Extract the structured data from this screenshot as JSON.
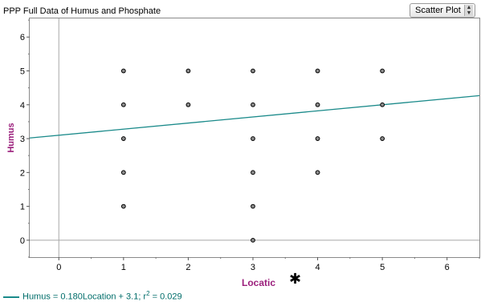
{
  "title": "PPP Full Data of Humus and Phosphate",
  "plot_type": {
    "selected": "Scatter Plot"
  },
  "footer": {
    "prefix": "Humus = 0.180Location + 3.1; r",
    "sup": "2",
    "suffix": " = 0.029"
  },
  "colors": {
    "axis_label": "#9b1f7c",
    "regression": "#1a8a8a",
    "point_fill": "#8c8c8c"
  },
  "icons": {
    "select_arrows": "up-down-arrows-icon",
    "cursor": "asterisk-cursor-icon"
  },
  "chart_data": {
    "type": "scatter",
    "title": "PPP Full Data of Humus and Phosphate",
    "xlabel": "Locatic",
    "ylabel": "Humus",
    "xlim": [
      -0.45,
      6.5
    ],
    "ylim": [
      -0.5,
      6.55
    ],
    "x_ticks": [
      0,
      1,
      2,
      3,
      4,
      5,
      6
    ],
    "x_tick_labels": [
      "0",
      "1",
      "2",
      "3",
      "4",
      "5",
      "6"
    ],
    "y_ticks": [
      0,
      1,
      2,
      3,
      4,
      5,
      6
    ],
    "y_tick_labels": [
      "0",
      "1",
      "2",
      "3",
      "4",
      "5",
      "6"
    ],
    "points": [
      {
        "x": 1,
        "y": 5
      },
      {
        "x": 1,
        "y": 4
      },
      {
        "x": 1,
        "y": 3
      },
      {
        "x": 1,
        "y": 2
      },
      {
        "x": 1,
        "y": 1
      },
      {
        "x": 2,
        "y": 5
      },
      {
        "x": 2,
        "y": 4
      },
      {
        "x": 3,
        "y": 5
      },
      {
        "x": 3,
        "y": 4
      },
      {
        "x": 3,
        "y": 3
      },
      {
        "x": 3,
        "y": 2
      },
      {
        "x": 3,
        "y": 1
      },
      {
        "x": 3,
        "y": 0
      },
      {
        "x": 4,
        "y": 5
      },
      {
        "x": 4,
        "y": 4
      },
      {
        "x": 4,
        "y": 3
      },
      {
        "x": 4,
        "y": 2
      },
      {
        "x": 5,
        "y": 5
      },
      {
        "x": 5,
        "y": 4
      },
      {
        "x": 5,
        "y": 3
      }
    ],
    "regression": {
      "slope": 0.18,
      "intercept": 3.1,
      "r2": 0.029
    },
    "grid": false,
    "legend": "bottom-left"
  }
}
